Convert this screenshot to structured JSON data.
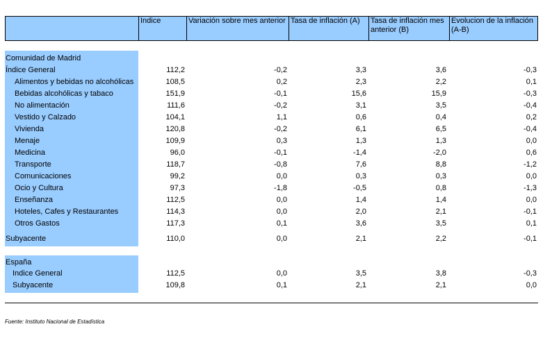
{
  "headers": {
    "col0": "",
    "col1": "Indice",
    "col2": "Variación sobre mes anterior",
    "col3": "Tasa de inflación (A)",
    "col4": "Tasa de inflación mes anterior (B)",
    "col5": "Evolucion de la inflación (A-B)"
  },
  "section_madrid": "Comunidad de Madrid",
  "madrid_rows": [
    {
      "label": "Índice General",
      "v": [
        "112,2",
        "-0,2",
        "3,3",
        "3,6",
        "-0,3"
      ]
    },
    {
      "label": "Alimentos y bebidas no alcohólicas",
      "v": [
        "108,5",
        "0,2",
        "2,3",
        "2,2",
        "0,1"
      ]
    },
    {
      "label": "Bebidas alcohólicas y tabaco",
      "v": [
        "151,9",
        "-0,1",
        "15,6",
        "15,9",
        "-0,3"
      ]
    },
    {
      "label": "No alimentación",
      "v": [
        "111,6",
        "-0,2",
        "3,1",
        "3,5",
        "-0,4"
      ]
    },
    {
      "label": "Vestido y Calzado",
      "v": [
        "104,1",
        "1,1",
        "0,6",
        "0,4",
        "0,2"
      ]
    },
    {
      "label": "Vivienda",
      "v": [
        "120,8",
        "-0,2",
        "6,1",
        "6,5",
        "-0,4"
      ]
    },
    {
      "label": "Menaje",
      "v": [
        "109,9",
        "0,3",
        "1,3",
        "1,3",
        "0,0"
      ]
    },
    {
      "label": "Medicina",
      "v": [
        "96,0",
        "-0,1",
        "-1,4",
        "-2,0",
        "0,6"
      ]
    },
    {
      "label": "Transporte",
      "v": [
        "118,7",
        "-0,8",
        "7,6",
        "8,8",
        "-1,2"
      ]
    },
    {
      "label": "Comunicaciones",
      "v": [
        "99,2",
        "0,0",
        "0,3",
        "0,3",
        "0,0"
      ]
    },
    {
      "label": "Ocio y Cultura",
      "v": [
        "97,3",
        "-1,8",
        "-0,5",
        "0,8",
        "-1,3"
      ]
    },
    {
      "label": "Enseñanza",
      "v": [
        "112,5",
        "0,0",
        "1,4",
        "1,4",
        "0,0"
      ]
    },
    {
      "label": "Hoteles, Cafes y Restaurantes",
      "v": [
        "114,3",
        "0,0",
        "2,0",
        "2,1",
        "-0,1"
      ]
    },
    {
      "label": "Otros Gastos",
      "v": [
        "117,3",
        "0,1",
        "3,6",
        "3,5",
        "0,1"
      ]
    },
    {
      "label": "Subyacente",
      "v": [
        "110,0",
        "0,0",
        "2,1",
        "2,2",
        "-0,1"
      ]
    }
  ],
  "section_espana": "España",
  "espana_rows": [
    {
      "label": "Indice General",
      "v": [
        "112,5",
        "0,0",
        "3,5",
        "3,8",
        "-0,3"
      ]
    },
    {
      "label": "Subyacente",
      "v": [
        "109,8",
        "0,1",
        "2,1",
        "2,1",
        "0,0"
      ]
    }
  ],
  "source": "Fuente: Instituto Nacional de Estadística"
}
